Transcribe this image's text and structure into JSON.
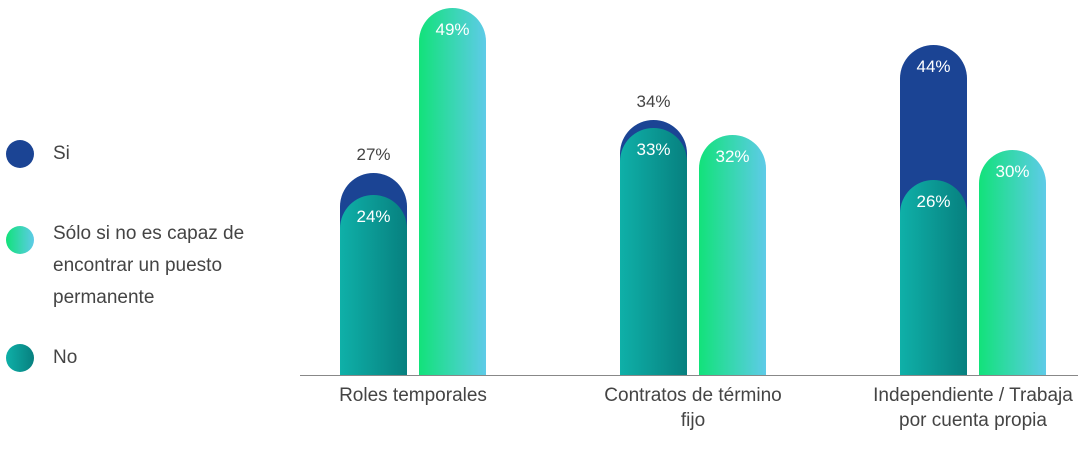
{
  "chart_data": {
    "type": "bar",
    "categories": [
      "Roles temporales",
      "Contratos de término fijo",
      "Independiente / Trabaja por cuenta propia"
    ],
    "series": [
      {
        "name": "Si",
        "color": "#1b4494",
        "values": [
          27,
          34,
          44
        ],
        "value_labels": [
          "27%",
          "34%",
          "44%"
        ]
      },
      {
        "name": "Sólo si no es capaz de encontrar un puesto permanente",
        "color": [
          "#12e27a",
          "#5ecbe8"
        ],
        "values": [
          49,
          32,
          30
        ],
        "value_labels": [
          "49%",
          "32%",
          "30%"
        ]
      },
      {
        "name": "No",
        "color": [
          "#0fb0a8",
          "#07807f"
        ],
        "values": [
          24,
          33,
          26
        ],
        "value_labels": [
          "24%",
          "33%",
          "26%"
        ]
      }
    ],
    "legend": "left"
  }
}
